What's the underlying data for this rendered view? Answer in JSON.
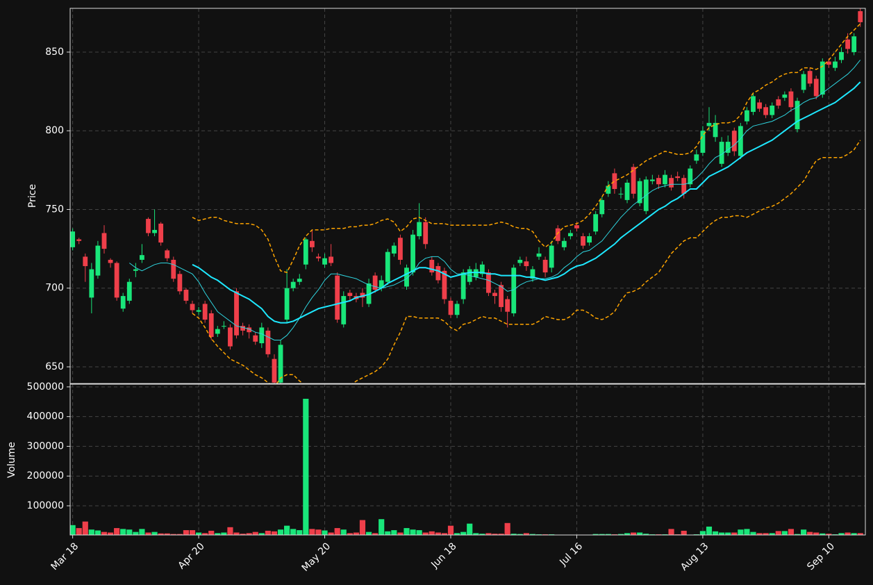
{
  "chart_data": {
    "type": "candlestick",
    "grid": true,
    "up_color": "#19e67a",
    "down_color": "#ef3f4a",
    "xlim": [
      -0.4,
      125.8
    ],
    "xticks": [
      {
        "value": 0,
        "label": "Mar 18"
      },
      {
        "value": 20,
        "label": "Apr 20"
      },
      {
        "value": 40,
        "label": "May 20"
      },
      {
        "value": 60,
        "label": "Jun 18"
      },
      {
        "value": 80,
        "label": "Jul 16"
      },
      {
        "value": 100,
        "label": "Aug 13"
      },
      {
        "value": 120,
        "label": "Sep 10"
      }
    ],
    "ylabel": "Price",
    "ylim": [
      639.4,
      877.8
    ],
    "yticks": [
      650,
      700,
      750,
      800,
      850
    ],
    "open": [
      726,
      731,
      720,
      694,
      708,
      735,
      718,
      716,
      687,
      692,
      711,
      718,
      744,
      735,
      741,
      724,
      718,
      709,
      699,
      690,
      685,
      690,
      684,
      671,
      676,
      675,
      698,
      676,
      675,
      670,
      665,
      673,
      655,
      640,
      680,
      700,
      704,
      715,
      730,
      720,
      715,
      720,
      708,
      677,
      697,
      695,
      697,
      690,
      708,
      700,
      704,
      722,
      732,
      701,
      710,
      733,
      742,
      718,
      714,
      711,
      692,
      683,
      693,
      704,
      707,
      709,
      710,
      697,
      702,
      693,
      684,
      716,
      717,
      706,
      720,
      718,
      713,
      738,
      726,
      733,
      740,
      733,
      729,
      736,
      747,
      760,
      773,
      760,
      756,
      777,
      754,
      749,
      768,
      770,
      766,
      770,
      771,
      770,
      766,
      781,
      786,
      803,
      796,
      779,
      786,
      800,
      784,
      806,
      812,
      818,
      815,
      810,
      820,
      821,
      825,
      801,
      826,
      838,
      833,
      823,
      844,
      840,
      845,
      858,
      850,
      876
    ],
    "high": [
      738,
      732,
      722,
      716,
      730,
      740,
      719,
      717,
      697,
      706,
      716,
      728,
      745,
      750,
      742,
      725,
      720,
      711,
      700,
      692,
      688,
      692,
      686,
      676,
      679,
      677,
      700,
      678,
      677,
      672,
      678,
      675,
      658,
      667,
      712,
      706,
      709,
      732,
      737,
      722,
      722,
      728,
      710,
      698,
      699,
      697,
      700,
      706,
      710,
      708,
      725,
      729,
      734,
      715,
      737,
      754,
      745,
      720,
      716,
      713,
      694,
      692,
      712,
      714,
      716,
      717,
      712,
      699,
      704,
      695,
      715,
      720,
      720,
      714,
      726,
      720,
      730,
      740,
      732,
      737,
      742,
      735,
      735,
      749,
      758,
      768,
      776,
      764,
      769,
      779,
      770,
      771,
      772,
      772,
      775,
      772,
      774,
      772,
      778,
      788,
      803,
      815,
      810,
      796,
      797,
      802,
      805,
      815,
      824,
      820,
      817,
      818,
      822,
      825,
      827,
      821,
      838,
      840,
      835,
      846,
      846,
      847,
      853,
      862,
      862,
      878
    ],
    "low": [
      724,
      728,
      704,
      684,
      706,
      722,
      713,
      692,
      685,
      690,
      707,
      716,
      733,
      733,
      727,
      717,
      704,
      696,
      690,
      684,
      683,
      678,
      667,
      669,
      674,
      661,
      668,
      670,
      668,
      664,
      662,
      656,
      638,
      638,
      678,
      698,
      702,
      712,
      723,
      717,
      713,
      714,
      678,
      675,
      692,
      691,
      688,
      688,
      697,
      698,
      702,
      720,
      715,
      699,
      708,
      731,
      725,
      708,
      703,
      690,
      681,
      681,
      690,
      702,
      705,
      707,
      695,
      690,
      685,
      675,
      682,
      714,
      711,
      704,
      718,
      707,
      710,
      728,
      724,
      731,
      736,
      725,
      727,
      734,
      745,
      758,
      760,
      757,
      754,
      757,
      752,
      747,
      766,
      763,
      764,
      762,
      768,
      757,
      764,
      779,
      784,
      800,
      793,
      777,
      784,
      784,
      782,
      804,
      810,
      812,
      808,
      808,
      814,
      819,
      812,
      799,
      824,
      828,
      820,
      821,
      840,
      838,
      843,
      849,
      848,
      866
    ],
    "close": [
      736,
      730,
      714,
      712,
      727,
      725,
      716,
      694,
      695,
      704,
      712,
      721,
      735,
      737,
      729,
      719,
      706,
      698,
      692,
      686,
      686,
      680,
      669,
      674,
      676,
      663,
      670,
      673,
      672,
      666,
      675,
      658,
      640,
      664,
      700,
      704,
      706,
      731,
      726,
      719,
      719,
      716,
      680,
      695,
      695,
      693,
      694,
      703,
      699,
      705,
      723,
      727,
      718,
      713,
      734,
      742,
      728,
      710,
      705,
      693,
      683,
      690,
      710,
      712,
      712,
      715,
      697,
      695,
      688,
      685,
      713,
      718,
      714,
      712,
      722,
      710,
      727,
      730,
      730,
      735,
      738,
      727,
      733,
      747,
      756,
      765,
      763,
      760,
      767,
      760,
      768,
      769,
      769,
      766,
      772,
      764,
      770,
      760,
      776,
      785,
      800,
      805,
      805,
      793,
      793,
      787,
      803,
      813,
      822,
      814,
      810,
      816,
      816,
      823,
      815,
      819,
      836,
      830,
      822,
      844,
      842,
      844,
      850,
      852,
      860,
      869
    ],
    "lines": [
      {
        "color": "#2fd6e0",
        "width": 1,
        "style": "solid",
        "values": [
          null,
          null,
          null,
          null,
          null,
          null,
          null,
          null,
          null,
          716,
          713,
          711,
          713,
          715,
          716,
          716,
          715,
          713,
          711,
          709,
          704,
          697,
          691,
          685,
          682,
          679,
          676,
          675,
          674,
          672,
          671,
          669,
          667,
          667,
          670,
          675,
          681,
          688,
          694,
          699,
          705,
          709,
          709,
          708,
          707,
          706,
          704,
          702,
          701,
          700,
          701,
          702,
          704,
          706,
          710,
          716,
          719,
          720,
          720,
          717,
          712,
          709,
          709,
          708,
          707,
          706,
          705,
          703,
          701,
          698,
          699,
          702,
          704,
          705,
          706,
          706,
          707,
          709,
          713,
          716,
          720,
          723,
          724,
          727,
          730,
          735,
          740,
          745,
          749,
          753,
          756,
          759,
          762,
          764,
          765,
          766,
          766,
          766,
          767,
          770,
          774,
          779,
          783,
          785,
          788,
          791,
          795,
          800,
          803,
          804,
          805,
          806,
          808,
          810,
          813,
          815,
          818,
          820,
          821,
          824,
          827,
          830,
          833,
          836,
          840,
          845
        ]
      },
      {
        "color": "#1ee8ff",
        "width": 2,
        "style": "solid",
        "values": [
          null,
          null,
          null,
          null,
          null,
          null,
          null,
          null,
          null,
          null,
          null,
          null,
          null,
          null,
          null,
          null,
          null,
          null,
          null,
          715,
          713,
          710,
          707,
          705,
          702,
          699,
          697,
          695,
          693,
          690,
          687,
          682,
          679,
          678,
          678,
          679,
          681,
          683,
          685,
          687,
          688,
          689,
          690,
          691,
          692,
          694,
          695,
          696,
          698,
          700,
          703,
          705,
          707,
          709,
          711,
          713,
          713,
          712,
          711,
          709,
          707,
          708,
          709,
          710,
          710,
          710,
          709,
          709,
          708,
          708,
          708,
          708,
          707,
          707,
          706,
          705,
          706,
          707,
          709,
          712,
          714,
          715,
          717,
          719,
          722,
          725,
          728,
          732,
          735,
          738,
          741,
          744,
          747,
          750,
          752,
          755,
          757,
          760,
          763,
          763,
          767,
          771,
          773,
          775,
          777,
          780,
          783,
          786,
          788,
          790,
          792,
          794,
          797,
          800,
          803,
          806,
          808,
          810,
          812,
          814,
          816,
          818,
          821,
          824,
          827,
          831
        ]
      },
      {
        "color": "#ffa500",
        "width": 1.5,
        "style": "dashed",
        "values": [
          null,
          null,
          null,
          null,
          null,
          null,
          null,
          null,
          null,
          null,
          null,
          null,
          null,
          null,
          null,
          null,
          null,
          null,
          null,
          745,
          743,
          744,
          745,
          745,
          743,
          742,
          741,
          741,
          741,
          740,
          737,
          731,
          720,
          711,
          710,
          718,
          727,
          733,
          737,
          737,
          737,
          738,
          738,
          738,
          739,
          739,
          740,
          740,
          741,
          743,
          744,
          742,
          736,
          739,
          744,
          745,
          743,
          741,
          741,
          741,
          740,
          740,
          740,
          740,
          740,
          740,
          740,
          741,
          742,
          741,
          739,
          738,
          738,
          736,
          730,
          726,
          729,
          735,
          739,
          740,
          741,
          743,
          747,
          752,
          758,
          765,
          768,
          770,
          772,
          775,
          778,
          781,
          783,
          785,
          787,
          786,
          785,
          785,
          786,
          790,
          797,
          802,
          804,
          805,
          805,
          806,
          810,
          818,
          824,
          826,
          829,
          831,
          834,
          836,
          837,
          837,
          840,
          840,
          839,
          841,
          845,
          850,
          855,
          860,
          864,
          868
        ]
      },
      {
        "color": "#ffa500",
        "width": 1.5,
        "style": "dashed",
        "values": [
          null,
          null,
          null,
          null,
          null,
          null,
          null,
          null,
          null,
          null,
          null,
          null,
          null,
          null,
          null,
          null,
          null,
          null,
          null,
          684,
          681,
          675,
          668,
          663,
          659,
          655,
          653,
          651,
          648,
          645,
          643,
          640,
          637,
          643,
          645,
          645,
          641,
          638,
          636,
          636,
          637,
          638,
          638,
          637,
          638,
          641,
          643,
          645,
          647,
          650,
          655,
          664,
          672,
          682,
          682,
          681,
          681,
          681,
          681,
          679,
          675,
          673,
          677,
          678,
          680,
          682,
          681,
          681,
          679,
          677,
          677,
          677,
          677,
          677,
          679,
          682,
          681,
          680,
          680,
          682,
          686,
          686,
          684,
          681,
          680,
          682,
          685,
          692,
          697,
          698,
          700,
          704,
          707,
          710,
          716,
          722,
          726,
          730,
          732,
          732,
          736,
          740,
          743,
          745,
          745,
          746,
          746,
          745,
          747,
          749,
          751,
          752,
          754,
          757,
          760,
          764,
          768,
          775,
          781,
          783,
          783,
          783,
          783,
          785,
          788,
          794
        ]
      }
    ],
    "volume": {
      "ylabel": "Volume",
      "ylim": [
        1800,
        509000
      ],
      "yticks": [
        100000,
        200000,
        300000,
        400000,
        500000
      ],
      "values": [
        35000,
        25000,
        47000,
        20000,
        17000,
        12000,
        10000,
        25000,
        22000,
        20000,
        12000,
        22000,
        10000,
        12000,
        7000,
        7000,
        5000,
        5000,
        18000,
        18000,
        10000,
        8000,
        16000,
        8000,
        10000,
        28000,
        10000,
        6000,
        8000,
        12000,
        8000,
        16000,
        14000,
        20000,
        33000,
        22000,
        18000,
        460000,
        22000,
        20000,
        17000,
        10000,
        25000,
        20000,
        8000,
        10000,
        52000,
        12000,
        8000,
        55000,
        14000,
        18000,
        10000,
        25000,
        20000,
        18000,
        10000,
        14000,
        10000,
        8000,
        33000,
        8000,
        12000,
        40000,
        8000,
        6000,
        8000,
        6000,
        6000,
        42000,
        6000,
        5000,
        8000,
        5000,
        4000,
        4000,
        4000,
        2000,
        2000,
        2000,
        2000,
        3000,
        3000,
        5000,
        5000,
        5000,
        4000,
        5000,
        8000,
        10000,
        10000,
        6000,
        4000,
        4000,
        4000,
        22000,
        4000,
        16000,
        3000,
        4000,
        15000,
        30000,
        14000,
        10000,
        10000,
        10000,
        20000,
        22000,
        12000,
        8000,
        8000,
        8000,
        15000,
        15000,
        22000,
        5000,
        20000,
        12000,
        10000,
        7000,
        6000,
        4000,
        8000,
        10000,
        8000,
        8000
      ]
    }
  }
}
